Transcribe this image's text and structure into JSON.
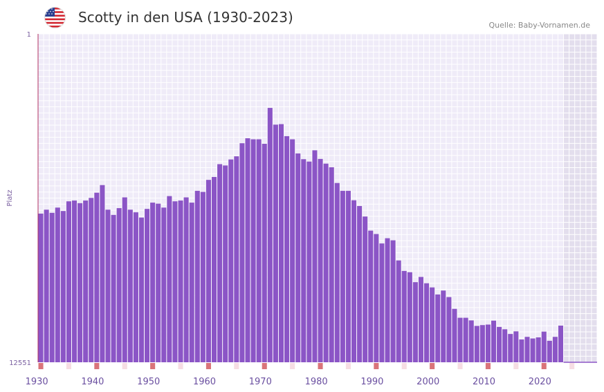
{
  "header": {
    "title": "Scotty in den USA (1930-2023)",
    "source": "Quelle: Baby-Vornamen.de",
    "flag_icon": "us-flag-icon"
  },
  "chart_data": {
    "type": "bar",
    "title": "Scotty in den USA (1930-2023)",
    "xlabel": "",
    "ylabel": "Platz",
    "y_inverted": true,
    "ylim": [
      1,
      12551
    ],
    "y_tick_labels": [
      "1",
      "12551"
    ],
    "x_tick_labels": [
      "1930",
      "1940",
      "1950",
      "1960",
      "1970",
      "1980",
      "1990",
      "2000",
      "2010",
      "2020"
    ],
    "years": [
      1929,
      1930,
      1931,
      1932,
      1933,
      1934,
      1935,
      1936,
      1937,
      1938,
      1939,
      1940,
      1941,
      1942,
      1943,
      1944,
      1945,
      1946,
      1947,
      1948,
      1949,
      1950,
      1951,
      1952,
      1953,
      1954,
      1955,
      1956,
      1957,
      1958,
      1959,
      1960,
      1961,
      1962,
      1963,
      1964,
      1965,
      1966,
      1967,
      1968,
      1969,
      1970,
      1971,
      1972,
      1973,
      1974,
      1975,
      1976,
      1977,
      1978,
      1979,
      1980,
      1981,
      1982,
      1983,
      1984,
      1985,
      1986,
      1987,
      1988,
      1989,
      1990,
      1991,
      1992,
      1993,
      1994,
      1995,
      1996,
      1997,
      1998,
      1999,
      2000,
      2001,
      2002,
      2003,
      2004,
      2005,
      2006,
      2007,
      2008,
      2009,
      2010,
      2011,
      2012,
      2013,
      2014,
      2015,
      2016,
      2017,
      2018,
      2019,
      2020,
      2021,
      2022
    ],
    "values": [
      6870,
      6720,
      6840,
      6640,
      6770,
      6400,
      6370,
      6470,
      6370,
      6270,
      6070,
      5780,
      6720,
      6920,
      6660,
      6250,
      6720,
      6820,
      7020,
      6690,
      6450,
      6490,
      6640,
      6200,
      6400,
      6370,
      6250,
      6450,
      6000,
      6040,
      5580,
      5470,
      4980,
      5030,
      4800,
      4680,
      4180,
      3990,
      4030,
      4030,
      4200,
      2830,
      3470,
      3450,
      3910,
      4030,
      4570,
      4790,
      4880,
      4450,
      4780,
      4960,
      5100,
      5700,
      6000,
      6000,
      6360,
      6580,
      6980,
      7520,
      7650,
      8010,
      7810,
      7890,
      8660,
      9060,
      9110,
      9490,
      9290,
      9530,
      9690,
      9960,
      9810,
      10060,
      10510,
      10850,
      10850,
      10950,
      11160,
      11130,
      11110,
      10960,
      11200,
      11290,
      11470,
      11370,
      11680,
      11580,
      11640,
      11600,
      11380,
      11730,
      11580,
      11150
    ],
    "note": "Lower rank (Platz) shown as taller bar; axis top = rank 1"
  }
}
